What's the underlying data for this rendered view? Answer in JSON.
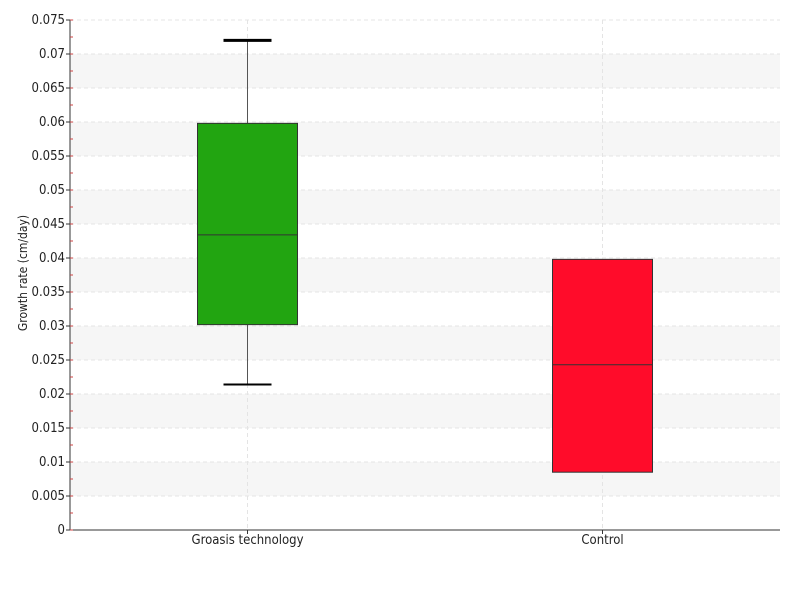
{
  "chart_data": {
    "type": "boxplot",
    "ylabel": "Growth rate (cm/day)",
    "xlabel": "",
    "ylim": [
      0,
      0.075
    ],
    "yticks": [
      "0",
      "0.005",
      "0.01",
      "0.015",
      "0.02",
      "0.025",
      "0.03",
      "0.035",
      "0.04",
      "0.045",
      "0.05",
      "0.055",
      "0.06",
      "0.065",
      "0.07",
      "0.075"
    ],
    "ytick_values": [
      0,
      0.005,
      0.01,
      0.015,
      0.02,
      0.025,
      0.03,
      0.035,
      0.04,
      0.045,
      0.05,
      0.055,
      0.06,
      0.065,
      0.07,
      0.075
    ],
    "categories": [
      "Groasis technology",
      "Control"
    ],
    "boxes": [
      {
        "whisker_low": 0.0214,
        "q1": 0.0302,
        "median": 0.0434,
        "q3": 0.0598,
        "whisker_high": 0.072,
        "color": "#22a511"
      },
      {
        "whisker_low": null,
        "q1": 0.0085,
        "median": 0.0243,
        "q3": 0.0398,
        "whisker_high": null,
        "color": "#ff0c2a"
      }
    ],
    "grid": true,
    "band_color": "#f6f6f6",
    "grid_color": "#e4e4e4"
  }
}
